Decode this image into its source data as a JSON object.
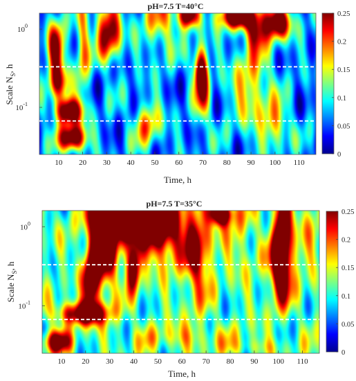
{
  "chart_data": [
    {
      "type": "heatmap",
      "title": "pH=7.5 T=40°C",
      "xlabel": "Time, h",
      "ylabel_main": "Scale N",
      "ylabel_sub": "S",
      "ylabel_tail": ", h",
      "x_range": [
        2,
        117
      ],
      "x_ticks": [
        10,
        20,
        30,
        40,
        50,
        60,
        70,
        80,
        90,
        100,
        110
      ],
      "y_scale": "log",
      "y_range": [
        0.025,
        1.6
      ],
      "y_ticks": [
        {
          "value": 1,
          "base": "10",
          "exp": "0"
        },
        {
          "value": 0.1,
          "base": "10",
          "exp": "-1"
        }
      ],
      "colorbar": {
        "min": 0,
        "max": 0.25,
        "ticks": [
          "0",
          "0.05",
          "0.1",
          "0.15",
          "0.2",
          "0.25"
        ]
      },
      "dashed_lines_scale": [
        0.33,
        0.067
      ],
      "background_level": 0.065,
      "blobs": [
        {
          "x": 9,
          "y": 0.55,
          "w": 2.5,
          "h": 0.25,
          "v": 0.2
        },
        {
          "x": 14,
          "y": 0.09,
          "w": 4,
          "h": 0.12,
          "v": 0.25
        },
        {
          "x": 16,
          "y": 0.04,
          "w": 4,
          "h": 0.12,
          "v": 0.25
        },
        {
          "x": 10,
          "y": 0.2,
          "w": 3,
          "h": 0.15,
          "v": 0.15
        },
        {
          "x": 20,
          "y": 0.6,
          "w": 2,
          "h": 0.4,
          "v": 0.13
        },
        {
          "x": 31,
          "y": 0.95,
          "w": 3.5,
          "h": 0.25,
          "v": 0.22
        },
        {
          "x": 64,
          "y": 1.5,
          "w": 3,
          "h": 0.12,
          "v": 0.25
        },
        {
          "x": 69,
          "y": 0.3,
          "w": 2,
          "h": 0.2,
          "v": 0.25
        },
        {
          "x": 70,
          "y": 0.12,
          "w": 2,
          "h": 0.25,
          "v": 0.12
        },
        {
          "x": 85,
          "y": 1.5,
          "w": 6,
          "h": 0.12,
          "v": 0.26
        },
        {
          "x": 101,
          "y": 1.2,
          "w": 4,
          "h": 0.15,
          "v": 0.24
        },
        {
          "x": 92,
          "y": 0.9,
          "w": 3,
          "h": 0.15,
          "v": 0.14
        },
        {
          "x": 52,
          "y": 1.3,
          "w": 5,
          "h": 0.3,
          "v": 0.11
        },
        {
          "x": 47,
          "y": 0.06,
          "w": 4,
          "h": 0.2,
          "v": 0.12
        },
        {
          "x": 90,
          "y": 0.2,
          "w": 6,
          "h": 0.4,
          "v": 0.11
        },
        {
          "x": 100,
          "y": 0.06,
          "w": 4,
          "h": 0.2,
          "v": 0.11
        }
      ]
    },
    {
      "type": "heatmap",
      "title": "pH=7.5 T=35°C",
      "xlabel": "Time, h",
      "ylabel_main": "Scale N",
      "ylabel_sub": "S",
      "ylabel_tail": ", h",
      "x_range": [
        2,
        117
      ],
      "x_ticks": [
        10,
        20,
        30,
        40,
        50,
        60,
        70,
        80,
        90,
        100,
        110
      ],
      "y_scale": "log",
      "y_range": [
        0.025,
        1.6
      ],
      "y_ticks": [
        {
          "value": 1,
          "base": "10",
          "exp": "0"
        },
        {
          "value": 0.1,
          "base": "10",
          "exp": "-1"
        }
      ],
      "colorbar": {
        "min": 0,
        "max": 0.25,
        "ticks": [
          "0",
          "0.05",
          "0.1",
          "0.15",
          "0.2",
          "0.25"
        ]
      },
      "dashed_lines_scale": [
        0.33,
        0.067
      ],
      "background_level": 0.11,
      "blobs": [
        {
          "x": 34,
          "y": 1.3,
          "w": 7,
          "h": 0.22,
          "v": 0.27
        },
        {
          "x": 51,
          "y": 1.2,
          "w": 6,
          "h": 0.3,
          "v": 0.28
        },
        {
          "x": 27,
          "y": 0.5,
          "w": 4,
          "h": 0.35,
          "v": 0.22
        },
        {
          "x": 22,
          "y": 0.2,
          "w": 2,
          "h": 0.25,
          "v": 0.18
        },
        {
          "x": 19,
          "y": 0.08,
          "w": 7,
          "h": 0.1,
          "v": 0.2
        },
        {
          "x": 8,
          "y": 0.035,
          "w": 4,
          "h": 0.1,
          "v": 0.17
        },
        {
          "x": 76,
          "y": 1.5,
          "w": 3,
          "h": 0.1,
          "v": 0.27
        },
        {
          "x": 101,
          "y": 0.33,
          "w": 3,
          "h": 0.3,
          "v": 0.28
        },
        {
          "x": 102,
          "y": 1.3,
          "w": 2,
          "h": 0.25,
          "v": 0.2
        },
        {
          "x": 66,
          "y": 0.5,
          "w": 4,
          "h": 0.4,
          "v": 0.16
        },
        {
          "x": 84,
          "y": 0.8,
          "w": 5,
          "h": 0.35,
          "v": 0.05
        },
        {
          "x": 60,
          "y": 0.04,
          "w": 15,
          "h": 0.12,
          "v": 0.05
        },
        {
          "x": 112,
          "y": 0.9,
          "w": 5,
          "h": 0.5,
          "v": 0.04
        },
        {
          "x": 40,
          "y": 0.3,
          "w": 2,
          "h": 0.2,
          "v": 0.2
        },
        {
          "x": 90,
          "y": 0.03,
          "w": 8,
          "h": 0.08,
          "v": 0.04
        }
      ]
    }
  ]
}
